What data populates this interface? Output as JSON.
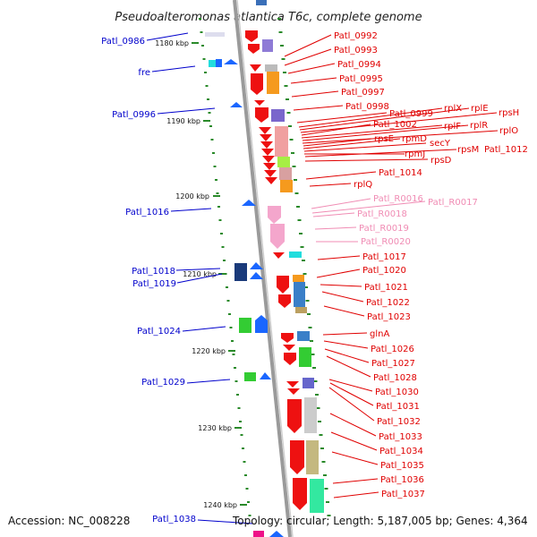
{
  "title": "Pseudoalteromonas atlantica T6c, complete genome",
  "footer": {
    "accession": "Accession: NC_008228",
    "topology": "Topology: circular; Length: 5,187,005 bp; Genes: 4,364"
  },
  "scale_labels": [
    "1180 kbp",
    "1190 kbp",
    "1200 kbp",
    "1210 kbp",
    "1220 kbp",
    "1230 kbp",
    "1240 kbp"
  ],
  "right_labels": [
    "Patl_0992",
    "Patl_0993",
    "Patl_0994",
    "Patl_0995",
    "Patl_0997",
    "Patl_0998",
    "Patl_0999",
    "rplX",
    "rplE",
    "rpsH",
    "Patl_1002",
    "rplF",
    "rplR",
    "rplO",
    "rpsE",
    "rpmD",
    "secY",
    "rpmJ",
    "rpsM",
    "Patl_1012",
    "rpsD",
    "Patl_1014",
    "rplQ",
    "Patl_R0016",
    "Patl_R0017",
    "Patl_R0018",
    "Patl_R0019",
    "Patl_R0020",
    "Patl_1017",
    "Patl_1020",
    "Patl_1021",
    "Patl_1022",
    "Patl_1023",
    "glnA",
    "Patl_1026",
    "Patl_1027",
    "Patl_1028",
    "Patl_1030",
    "Patl_1031",
    "Patl_1032",
    "Patl_1033",
    "Patl_1034",
    "Patl_1035",
    "Patl_1036",
    "Patl_1037"
  ],
  "left_labels": [
    "Patl_0986",
    "fre",
    "Patl_0996",
    "Patl_1016",
    "Patl_1018",
    "Patl_1019",
    "Patl_1024",
    "Patl_1029",
    "Patl_1038"
  ],
  "colors": {
    "forward_label": "#e00000",
    "reverse_label": "#0000cc",
    "rna_label": "#f08cb4",
    "backbone": "#888888"
  }
}
